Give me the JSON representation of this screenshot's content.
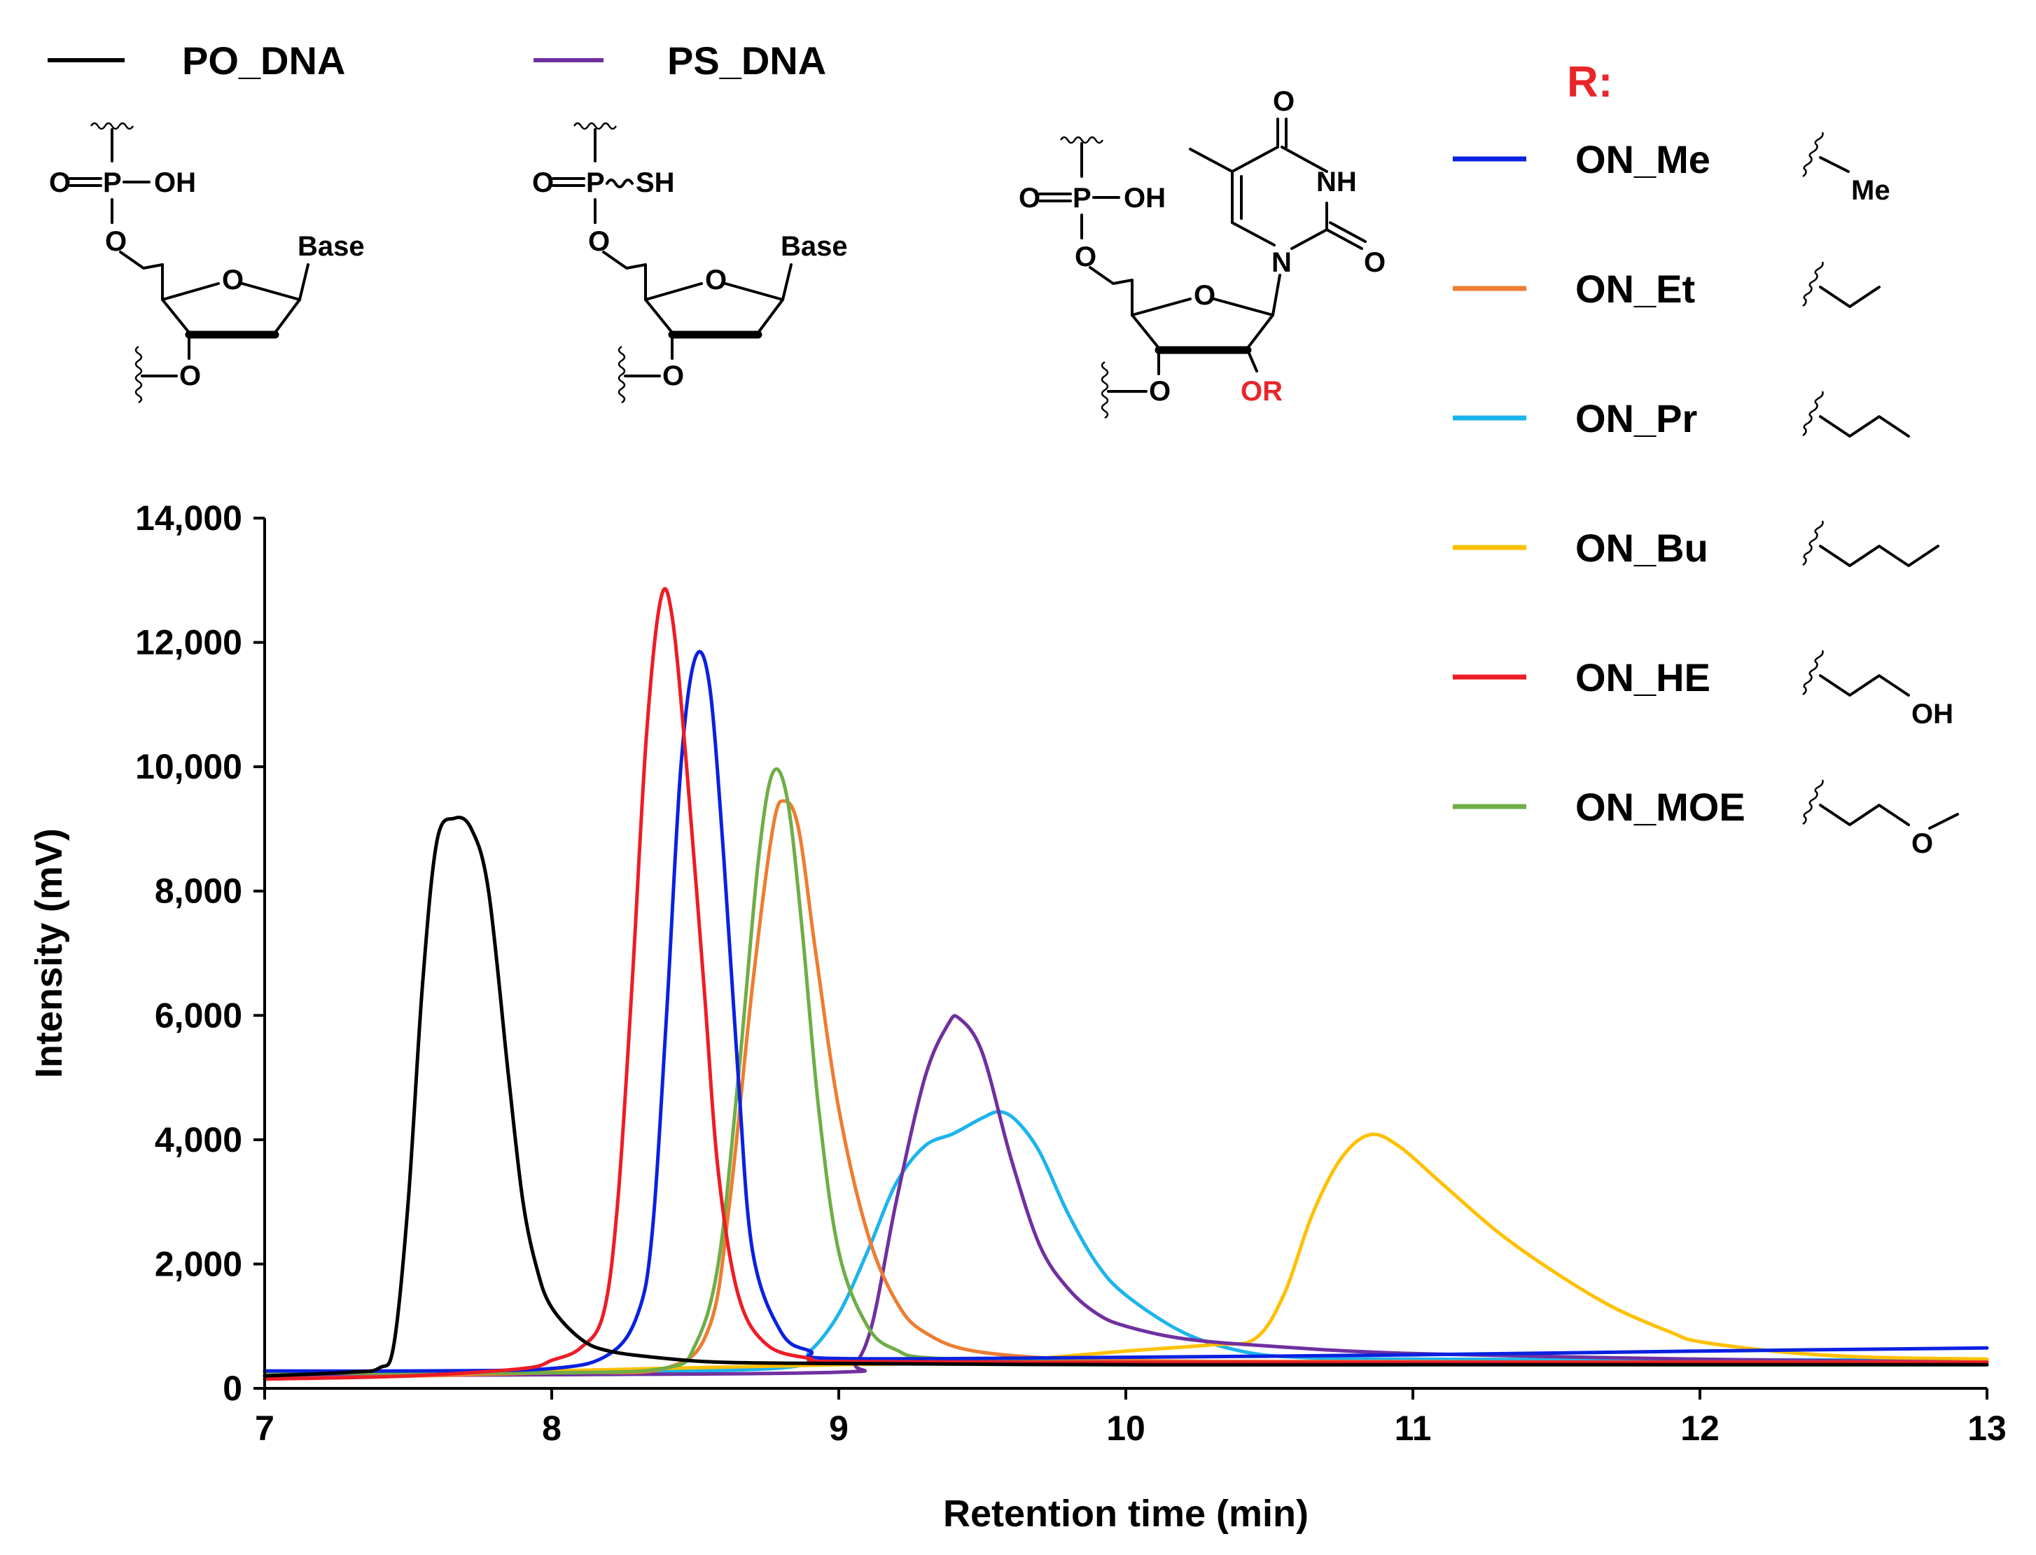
{
  "chart_data": {
    "type": "line",
    "title": "",
    "xlabel": "Retention time (min)",
    "ylabel": "Intensity (mV)",
    "xlim": [
      7,
      13
    ],
    "ylim": [
      0,
      14000
    ],
    "xticks": [
      7,
      8,
      9,
      10,
      11,
      12,
      13
    ],
    "yticks": [
      0,
      2000,
      4000,
      6000,
      8000,
      10000,
      12000,
      14000
    ],
    "xtick_labels": [
      "7",
      "8",
      "9",
      "10",
      "11",
      "12",
      "13"
    ],
    "ytick_labels": [
      "0",
      "2,000",
      "4,000",
      "6,000",
      "8,000",
      "10,000",
      "12,000",
      "14,000"
    ],
    "series": [
      {
        "name": "PO_DNA",
        "color": "#000000",
        "points": [
          [
            7.0,
            200
          ],
          [
            7.3,
            260
          ],
          [
            7.4,
            330
          ],
          [
            7.45,
            700
          ],
          [
            7.5,
            3000
          ],
          [
            7.55,
            6500
          ],
          [
            7.6,
            8800
          ],
          [
            7.66,
            9170
          ],
          [
            7.72,
            9000
          ],
          [
            7.78,
            8000
          ],
          [
            7.85,
            5000
          ],
          [
            7.9,
            3000
          ],
          [
            7.95,
            1900
          ],
          [
            8.0,
            1300
          ],
          [
            8.1,
            800
          ],
          [
            8.2,
            600
          ],
          [
            8.4,
            480
          ],
          [
            8.6,
            420
          ],
          [
            9.0,
            400
          ],
          [
            10.0,
            380
          ],
          [
            11.0,
            380
          ],
          [
            12.0,
            380
          ],
          [
            13.0,
            380
          ]
        ]
      },
      {
        "name": "PS_DNA",
        "color": "#7030a0",
        "points": [
          [
            7.0,
            200
          ],
          [
            8.0,
            220
          ],
          [
            9.0,
            260
          ],
          [
            9.06,
            400
          ],
          [
            9.12,
            1100
          ],
          [
            9.2,
            3000
          ],
          [
            9.3,
            5000
          ],
          [
            9.38,
            5850
          ],
          [
            9.42,
            5950
          ],
          [
            9.5,
            5400
          ],
          [
            9.6,
            3700
          ],
          [
            9.7,
            2300
          ],
          [
            9.8,
            1600
          ],
          [
            9.9,
            1200
          ],
          [
            10.0,
            1000
          ],
          [
            10.2,
            800
          ],
          [
            10.5,
            680
          ],
          [
            11.0,
            560
          ],
          [
            12.0,
            470
          ],
          [
            13.0,
            420
          ]
        ]
      },
      {
        "name": "ON_Me",
        "color": "#0a21e0",
        "points": [
          [
            7.0,
            280
          ],
          [
            7.5,
            280
          ],
          [
            8.0,
            320
          ],
          [
            8.2,
            550
          ],
          [
            8.3,
            1200
          ],
          [
            8.35,
            2500
          ],
          [
            8.4,
            6000
          ],
          [
            8.45,
            10000
          ],
          [
            8.5,
            11750
          ],
          [
            8.55,
            11300
          ],
          [
            8.6,
            8500
          ],
          [
            8.65,
            5000
          ],
          [
            8.7,
            2200
          ],
          [
            8.8,
            900
          ],
          [
            8.9,
            600
          ],
          [
            9.0,
            480
          ],
          [
            10.0,
            500
          ],
          [
            11.0,
            540
          ],
          [
            12.0,
            600
          ],
          [
            13.0,
            650
          ]
        ]
      },
      {
        "name": "ON_Et",
        "color": "#ed7d31",
        "points": [
          [
            7.0,
            150
          ],
          [
            8.0,
            250
          ],
          [
            8.4,
            330
          ],
          [
            8.55,
            1000
          ],
          [
            8.62,
            3000
          ],
          [
            8.7,
            6500
          ],
          [
            8.77,
            9000
          ],
          [
            8.81,
            9450
          ],
          [
            8.86,
            9000
          ],
          [
            8.92,
            7000
          ],
          [
            9.0,
            4500
          ],
          [
            9.1,
            2500
          ],
          [
            9.2,
            1400
          ],
          [
            9.3,
            900
          ],
          [
            9.5,
            580
          ],
          [
            10.0,
            450
          ],
          [
            11.0,
            430
          ],
          [
            12.0,
            420
          ],
          [
            13.0,
            420
          ]
        ]
      },
      {
        "name": "ON_Pr",
        "color": "#1cb4ec",
        "points": [
          [
            7.0,
            150
          ],
          [
            8.0,
            250
          ],
          [
            8.8,
            330
          ],
          [
            8.9,
            600
          ],
          [
            9.0,
            1200
          ],
          [
            9.1,
            2200
          ],
          [
            9.2,
            3300
          ],
          [
            9.3,
            3900
          ],
          [
            9.4,
            4100
          ],
          [
            9.5,
            4350
          ],
          [
            9.56,
            4450
          ],
          [
            9.62,
            4300
          ],
          [
            9.7,
            3800
          ],
          [
            9.8,
            2800
          ],
          [
            9.9,
            2000
          ],
          [
            10.0,
            1500
          ],
          [
            10.2,
            900
          ],
          [
            10.4,
            600
          ],
          [
            10.6,
            500
          ],
          [
            11.0,
            470
          ],
          [
            12.0,
            460
          ],
          [
            13.0,
            460
          ]
        ]
      },
      {
        "name": "ON_Bu",
        "color": "#ffc000",
        "points": [
          [
            7.0,
            150
          ],
          [
            8.0,
            280
          ],
          [
            9.0,
            380
          ],
          [
            9.5,
            420
          ],
          [
            10.0,
            600
          ],
          [
            10.3,
            700
          ],
          [
            10.45,
            800
          ],
          [
            10.55,
            1500
          ],
          [
            10.65,
            2800
          ],
          [
            10.75,
            3700
          ],
          [
            10.85,
            4080
          ],
          [
            10.95,
            3900
          ],
          [
            11.1,
            3300
          ],
          [
            11.3,
            2500
          ],
          [
            11.5,
            1850
          ],
          [
            11.7,
            1300
          ],
          [
            11.9,
            900
          ],
          [
            12.0,
            750
          ],
          [
            12.3,
            580
          ],
          [
            12.6,
            500
          ],
          [
            13.0,
            470
          ]
        ]
      },
      {
        "name": "ON_HE",
        "color": "#ee1c25",
        "points": [
          [
            7.0,
            150
          ],
          [
            7.5,
            200
          ],
          [
            7.9,
            320
          ],
          [
            8.0,
            450
          ],
          [
            8.1,
            650
          ],
          [
            8.18,
            1200
          ],
          [
            8.23,
            3000
          ],
          [
            8.28,
            6500
          ],
          [
            8.33,
            10500
          ],
          [
            8.38,
            12700
          ],
          [
            8.42,
            12400
          ],
          [
            8.47,
            10000
          ],
          [
            8.53,
            6500
          ],
          [
            8.58,
            3500
          ],
          [
            8.65,
            1500
          ],
          [
            8.75,
            700
          ],
          [
            8.9,
            480
          ],
          [
            9.0,
            430
          ],
          [
            10.0,
            420
          ],
          [
            11.0,
            420
          ],
          [
            12.0,
            420
          ],
          [
            13.0,
            420
          ]
        ]
      },
      {
        "name": "ON_MOE",
        "color": "#70ad47",
        "points": [
          [
            7.0,
            250
          ],
          [
            8.0,
            250
          ],
          [
            8.4,
            330
          ],
          [
            8.5,
            700
          ],
          [
            8.58,
            2000
          ],
          [
            8.65,
            5000
          ],
          [
            8.72,
            8500
          ],
          [
            8.77,
            9900
          ],
          [
            8.82,
            9500
          ],
          [
            8.87,
            7500
          ],
          [
            8.93,
            4500
          ],
          [
            9.0,
            2200
          ],
          [
            9.1,
            1000
          ],
          [
            9.2,
            620
          ],
          [
            9.35,
            480
          ],
          [
            10.0,
            420
          ],
          [
            11.0,
            420
          ],
          [
            12.0,
            420
          ],
          [
            13.0,
            420
          ]
        ]
      }
    ]
  },
  "legend_top": [
    {
      "label": "PO_DNA",
      "color": "#000000"
    },
    {
      "label": "PS_DNA",
      "color": "#7030a0"
    }
  ],
  "legend_r": {
    "title": "R:",
    "items": [
      {
        "label": "ON_Me",
        "color": "#0a21e0",
        "substituent_label": "Me"
      },
      {
        "label": "ON_Et",
        "color": "#ed7d31"
      },
      {
        "label": "ON_Pr",
        "color": "#1cb4ec"
      },
      {
        "label": "ON_Bu",
        "color": "#ffc000"
      },
      {
        "label": "ON_HE",
        "color": "#ee1c25",
        "substituent_label": "OH"
      },
      {
        "label": "ON_MOE",
        "color": "#70ad47",
        "substituent_label": "O"
      }
    ]
  },
  "structures": {
    "po_dna": {
      "p": "P",
      "o_double": "O",
      "oh": "OH",
      "o_link": "O",
      "ring_o": "O",
      "base": "Base",
      "o3": "O"
    },
    "ps_dna": {
      "p": "P",
      "o_double": "O",
      "sh": "SH",
      "o_link": "O",
      "ring_o": "O",
      "base": "Base",
      "o3": "O"
    },
    "modified": {
      "p": "P",
      "o_double": "O",
      "oh": "OH",
      "o_link": "O",
      "ring_o": "O",
      "o3": "O",
      "or": "OR",
      "n1": "N",
      "nh": "NH",
      "o_top": "O",
      "o_right": "O"
    }
  }
}
